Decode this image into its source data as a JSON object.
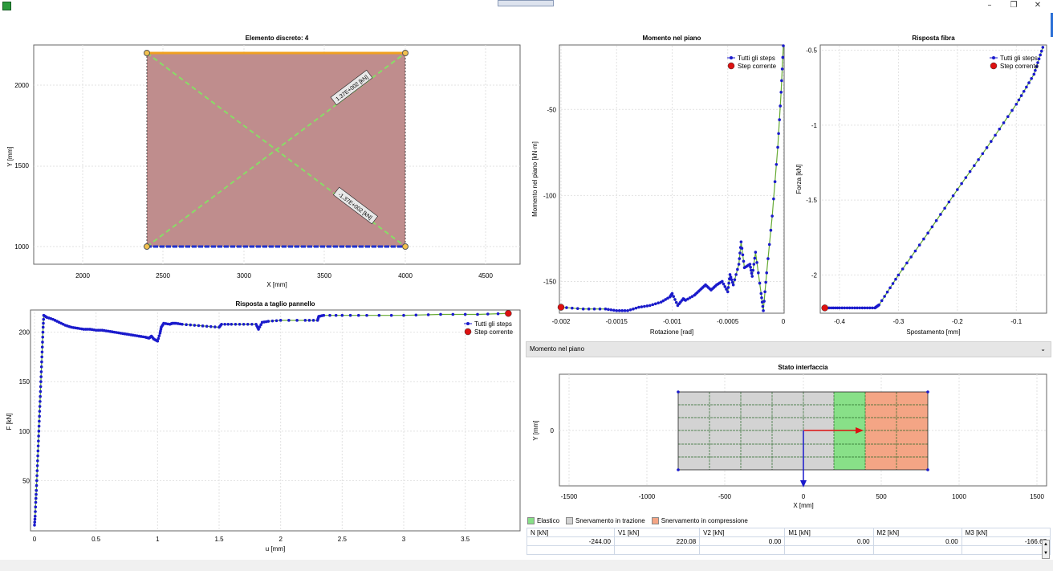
{
  "window": {
    "minimize": "–",
    "restore": "❐",
    "close": "✕"
  },
  "colors": {
    "series": "#1a1acc",
    "line": "#66aa33",
    "current": "#dd1111",
    "fill": "#bf8d8d",
    "diag": "#88dd66",
    "elastic": "#88e088",
    "tension": "#d3d3d3",
    "compression": "#f4a585"
  },
  "element_panel": {
    "title": "Elemento discreto: 4",
    "xlabel": "X [mm]",
    "ylabel": "Y [mm]",
    "xticks": [
      "2000",
      "2500",
      "3000",
      "3500",
      "4000",
      "4500"
    ],
    "yticks": [
      "1000",
      "1500",
      "2000"
    ],
    "diag_label_1": "1.37E+002 [kN]",
    "diag_label_2": "-1.37E+002 [kN]"
  },
  "moment_panel": {
    "title": "Momento nel piano",
    "xlabel": "Rotazione [rad]",
    "ylabel": "Momento nel piano [kN·m]",
    "xticks": [
      "-0.002",
      "-0.0015",
      "-0.001",
      "-0.0005",
      "0"
    ],
    "yticks": [
      "-50",
      "-100",
      "-150"
    ],
    "legend_all": "Tutti gli steps",
    "legend_current": "Step corrente"
  },
  "fiber_panel": {
    "title": "Risposta fibra",
    "xlabel": "Spostamento [mm]",
    "ylabel": "Forza [kN]",
    "xticks": [
      "-0.4",
      "-0.3",
      "-0.2",
      "-0.1"
    ],
    "yticks": [
      "-0.5",
      "-1",
      "-1.5",
      "-2"
    ],
    "legend_all": "Tutti gli steps",
    "legend_current": "Step corrente"
  },
  "shear_panel": {
    "title": "Risposta a taglio pannello",
    "xlabel": "u [mm]",
    "ylabel": "F [kN]",
    "xticks": [
      "0",
      "0.5",
      "1",
      "1.5",
      "2",
      "2.5",
      "3",
      "3.5"
    ],
    "yticks": [
      "50",
      "100",
      "150",
      "200"
    ],
    "legend_all": "Tutti gli steps",
    "legend_current": "Step corrente"
  },
  "dropdown": {
    "value": "Momento nel piano",
    "chevron": "⌄"
  },
  "interface_panel": {
    "title": "Stato interfaccia",
    "xlabel": "X [mm]",
    "ylabel": "Y [mm]",
    "xticks": [
      "-1500",
      "-1000",
      "-500",
      "0",
      "500",
      "1000",
      "1500"
    ],
    "yticks": [
      "0"
    ]
  },
  "legend_states": {
    "elastic": "Elastico",
    "tension": "Snervamento in trazione",
    "compression": "Snervamento in compressione"
  },
  "results_table": {
    "headers": [
      "N [kN]",
      "V1 [kN]",
      "V2 [kN]",
      "M1 [kN]",
      "M2 [kN]",
      "M3 [kN]"
    ],
    "values": [
      "-244.00",
      "220.08",
      "0.00",
      "0.00",
      "0.00",
      "-166.67"
    ]
  },
  "chart_data": [
    {
      "type": "line",
      "title": "Risposta a taglio pannello",
      "xlabel": "u [mm]",
      "ylabel": "F [kN]",
      "xlim": [
        0,
        3.9
      ],
      "ylim": [
        0,
        220
      ],
      "series": [
        {
          "name": "Tutti gli steps",
          "x": [
            0.0,
            0.005,
            0.01,
            0.015,
            0.02,
            0.025,
            0.03,
            0.035,
            0.04,
            0.045,
            0.05,
            0.055,
            0.06,
            0.065,
            0.07,
            0.075,
            0.1,
            0.15,
            0.2,
            0.25,
            0.3,
            0.35,
            0.4,
            0.45,
            0.5,
            0.55,
            0.6,
            0.65,
            0.7,
            0.75,
            0.8,
            0.85,
            0.9,
            0.93,
            0.95,
            0.97,
            1.0,
            1.02,
            1.03,
            1.05,
            1.1,
            1.12,
            1.15,
            1.2,
            1.3,
            1.4,
            1.5,
            1.52,
            1.6,
            1.7,
            1.8,
            1.82,
            1.85,
            1.9,
            2.0,
            2.2,
            2.3,
            2.31,
            2.35,
            2.5,
            2.7,
            3.0,
            3.3,
            3.6,
            3.85
          ],
          "y": [
            5,
            14,
            28,
            40,
            55,
            70,
            85,
            100,
            115,
            130,
            145,
            160,
            175,
            190,
            205,
            217,
            215,
            213,
            210,
            207,
            205,
            204,
            203,
            203,
            202,
            202,
            201,
            200,
            199,
            198,
            197,
            196,
            195,
            194,
            196,
            193,
            191,
            199,
            205,
            209,
            208,
            209,
            209,
            208,
            207,
            206,
            205,
            208,
            208,
            208,
            208,
            203,
            210,
            211,
            212,
            212,
            212,
            216,
            217,
            217,
            217,
            217,
            218,
            218,
            219
          ]
        }
      ],
      "current": {
        "x": 3.85,
        "y": 219
      }
    },
    {
      "type": "line",
      "title": "Momento nel piano",
      "xlabel": "Rotazione [rad]",
      "ylabel": "Momento nel piano [kN·m]",
      "xlim": [
        -0.002,
        0
      ],
      "ylim": [
        -168,
        -13
      ],
      "series": [
        {
          "name": "Tutti gli steps",
          "x": [
            -0.002,
            -0.0018,
            -0.0016,
            -0.0015,
            -0.0014,
            -0.0013,
            -0.0012,
            -0.0011,
            -0.00102,
            -0.001,
            -0.00095,
            -0.0009,
            -0.00088,
            -0.0008,
            -0.00075,
            -0.0007,
            -0.00065,
            -0.0006,
            -0.00055,
            -0.0005,
            -0.00048,
            -0.00045,
            -0.0004,
            -0.00038,
            -0.00035,
            -0.0003,
            -0.00028,
            -0.00025,
            -0.0002,
            -0.00018,
            -0.00015,
            -0.0001,
            -5e-05,
            -2e-05,
            0.0
          ],
          "y": [
            -165,
            -166,
            -166,
            -167,
            -167,
            -165,
            -164,
            -162,
            -159,
            -157,
            -164,
            -160,
            -161,
            -158,
            -155,
            -152,
            -155,
            -152,
            -150,
            -156,
            -146,
            -152,
            -140,
            -127,
            -142,
            -140,
            -147,
            -133,
            -157,
            -167,
            -145,
            -112,
            -72,
            -40,
            -13
          ]
        }
      ],
      "current": {
        "x": -0.002,
        "y": -165
      }
    },
    {
      "type": "line",
      "title": "Risposta fibra",
      "xlabel": "Spostamento [mm]",
      "ylabel": "Forza [kN]",
      "xlim": [
        -0.43,
        -0.05
      ],
      "ylim": [
        -2.25,
        -0.47
      ],
      "series": [
        {
          "name": "Tutti gli steps",
          "x": [
            -0.425,
            -0.4,
            -0.37,
            -0.34,
            -0.333,
            -0.3,
            -0.25,
            -0.2,
            -0.15,
            -0.1,
            -0.07,
            -0.055
          ],
          "y": [
            -2.22,
            -2.22,
            -2.22,
            -2.22,
            -2.2,
            -2.0,
            -1.72,
            -1.43,
            -1.15,
            -0.86,
            -0.66,
            -0.48
          ]
        }
      ],
      "current": {
        "x": -0.425,
        "y": -2.22
      }
    }
  ]
}
